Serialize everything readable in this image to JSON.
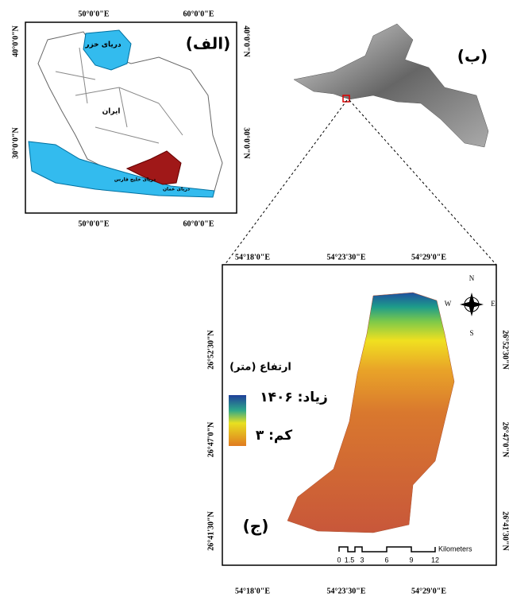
{
  "panel_a": {
    "label": "(الف)",
    "lon_labels": [
      "50°0'0\"E",
      "60°0'0\"E"
    ],
    "lat_labels": [
      "40°0'0\"N",
      "30°0'0\"N"
    ],
    "places": {
      "caspian": "دریای خزر",
      "iran": "ایران",
      "oman": "دریای عمان",
      "gulf": "دریای خلیج فارس"
    }
  },
  "panel_b": {
    "label": "(ب)"
  },
  "panel_c": {
    "label": "(ج)",
    "lon_labels": [
      "54°18'0\"E",
      "54°23'30\"E",
      "54°29'0\"E"
    ],
    "lat_labels": [
      "26°52'30\"N",
      "26°47'0\"N",
      "26°41'30\"N"
    ],
    "legend": {
      "title": "ارتفاع (متر)",
      "high": "زیاد: ۱۴۰۶",
      "low": "کم: ۳"
    },
    "compass": {
      "n": "N",
      "s": "S",
      "e": "E",
      "w": "W"
    },
    "scale": {
      "ticks": [
        "0",
        "1.5",
        "3",
        "6",
        "9",
        "12"
      ],
      "unit": "Kilometers"
    }
  }
}
